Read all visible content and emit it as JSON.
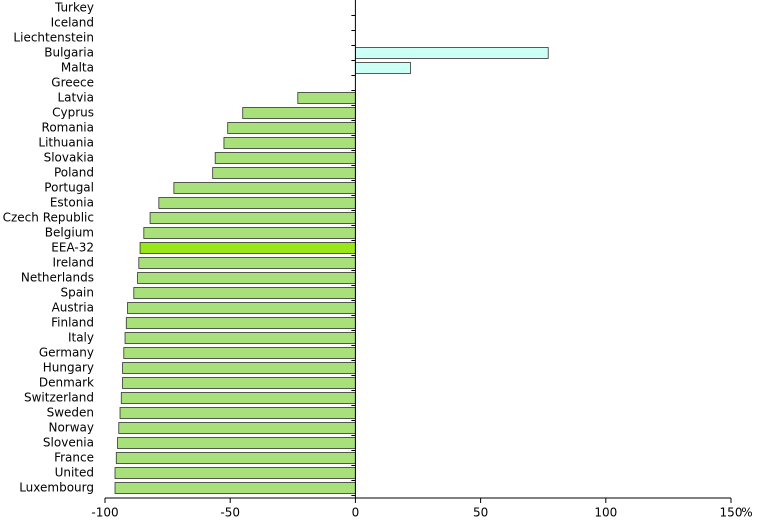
{
  "chart_data": {
    "type": "hbar",
    "categories": [
      "Turkey",
      "Iceland",
      "Liechtenstein",
      "Bulgaria",
      "Malta",
      "Greece",
      "Latvia",
      "Cyprus",
      "Romania",
      "Lithuania",
      "Slovakia",
      "Poland",
      "Portugal",
      "Estonia",
      "Czech Republic",
      "Belgium",
      "EEA-32",
      "Ireland",
      "Netherlands",
      "Spain",
      "Austria",
      "Finland",
      "Italy",
      "Germany",
      "Hungary",
      "Denmark",
      "Switzerland",
      "Sweden",
      "Norway",
      "Slovenia",
      "France",
      "United",
      "Luxembourg"
    ],
    "values": [
      null,
      null,
      null,
      77,
      22,
      null,
      -23,
      -45,
      -51,
      -52.5,
      -56,
      -57,
      -72.5,
      -78.5,
      -82,
      -84.5,
      -86,
      -86.5,
      -87,
      -88.5,
      -91,
      -91.5,
      -92,
      -92.5,
      -93,
      -93,
      -93.5,
      -94,
      -94.5,
      -95,
      -95.5,
      -96,
      -96
    ],
    "colors": [
      "#a8e07a",
      "#a8e07a",
      "#a8e07a",
      "#ccfff5",
      "#ccfff5",
      "#a8e07a",
      "#a8e07a",
      "#a8e07a",
      "#a8e07a",
      "#a8e07a",
      "#a8e07a",
      "#a8e07a",
      "#a8e07a",
      "#a8e07a",
      "#a8e07a",
      "#a8e07a",
      "#99e619",
      "#a8e07a",
      "#a8e07a",
      "#a8e07a",
      "#a8e07a",
      "#a8e07a",
      "#a8e07a",
      "#a8e07a",
      "#a8e07a",
      "#a8e07a",
      "#a8e07a",
      "#a8e07a",
      "#a8e07a",
      "#a8e07a",
      "#a8e07a",
      "#a8e07a",
      "#a8e07a"
    ],
    "xlim": [
      -100,
      150
    ],
    "xticks": [
      -100,
      -50,
      0,
      50,
      100,
      150
    ],
    "x_label": "%"
  }
}
